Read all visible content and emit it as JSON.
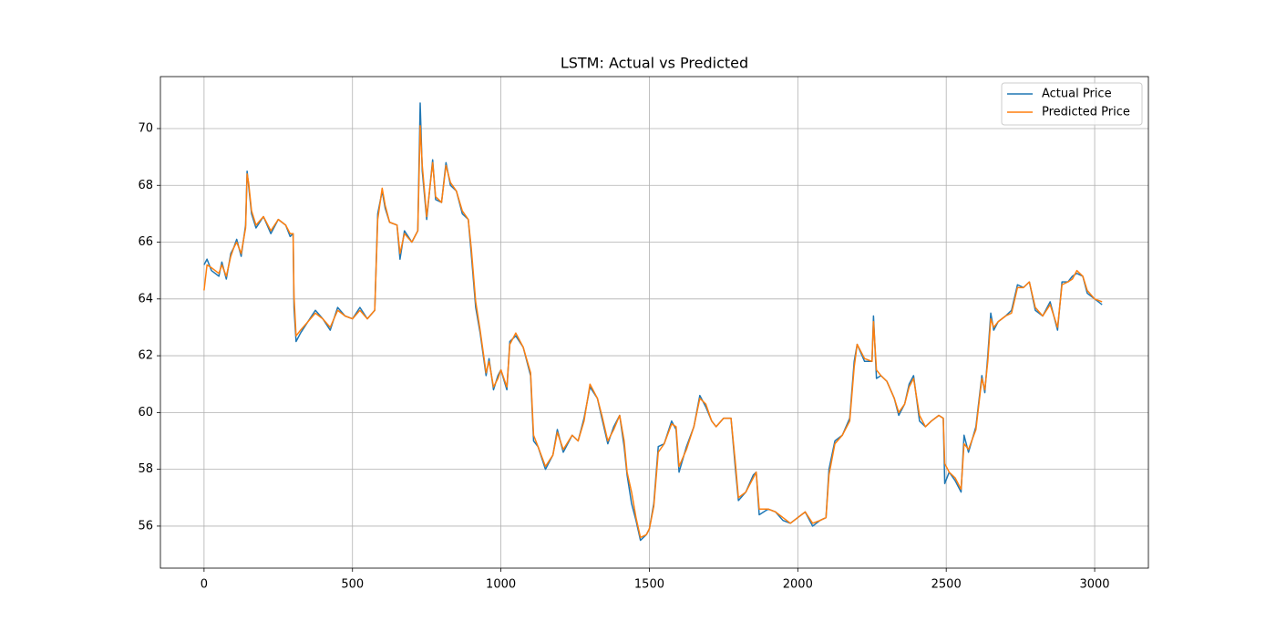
{
  "chart_data": {
    "type": "line",
    "title": "LSTM: Actual vs Predicted",
    "x": [
      0,
      10,
      25,
      50,
      60,
      75,
      90,
      100,
      110,
      125,
      140,
      145,
      150,
      160,
      175,
      200,
      225,
      250,
      275,
      290,
      300,
      303,
      310,
      325,
      350,
      375,
      400,
      425,
      450,
      475,
      500,
      525,
      550,
      575,
      585,
      600,
      610,
      625,
      650,
      660,
      675,
      700,
      720,
      728,
      735,
      750,
      770,
      780,
      800,
      815,
      830,
      850,
      870,
      890,
      900,
      915,
      930,
      950,
      960,
      975,
      990,
      1000,
      1020,
      1030,
      1050,
      1075,
      1100,
      1110,
      1125,
      1150,
      1175,
      1190,
      1210,
      1240,
      1260,
      1280,
      1300,
      1325,
      1340,
      1360,
      1380,
      1400,
      1415,
      1425,
      1440,
      1455,
      1470,
      1490,
      1500,
      1515,
      1530,
      1550,
      1575,
      1590,
      1600,
      1625,
      1650,
      1670,
      1690,
      1710,
      1725,
      1750,
      1775,
      1790,
      1800,
      1825,
      1850,
      1860,
      1870,
      1900,
      1925,
      1950,
      1975,
      2000,
      2025,
      2050,
      2075,
      2095,
      2105,
      2125,
      2150,
      2175,
      2190,
      2200,
      2225,
      2250,
      2255,
      2265,
      2280,
      2300,
      2325,
      2340,
      2360,
      2375,
      2390,
      2410,
      2430,
      2450,
      2475,
      2490,
      2495,
      2510,
      2530,
      2550,
      2560,
      2575,
      2600,
      2620,
      2630,
      2640,
      2650,
      2660,
      2675,
      2700,
      2720,
      2740,
      2760,
      2780,
      2800,
      2825,
      2850,
      2875,
      2890,
      2910,
      2925,
      2940,
      2960,
      2975,
      3000,
      3025
    ],
    "series": [
      {
        "name": "Actual Price",
        "color": "#1f77b4",
        "values": [
          65.2,
          65.4,
          65.0,
          64.8,
          65.3,
          64.7,
          65.6,
          65.8,
          66.1,
          65.5,
          66.6,
          68.5,
          68.0,
          67.0,
          66.5,
          66.9,
          66.3,
          66.8,
          66.6,
          66.2,
          66.3,
          63.7,
          62.5,
          62.8,
          63.2,
          63.6,
          63.3,
          62.9,
          63.7,
          63.4,
          63.3,
          63.7,
          63.3,
          63.6,
          67.0,
          67.8,
          67.2,
          66.7,
          66.6,
          65.4,
          66.4,
          66.0,
          66.4,
          70.9,
          68.5,
          66.8,
          68.9,
          67.5,
          67.4,
          68.8,
          68.0,
          67.8,
          67.0,
          66.8,
          65.6,
          63.7,
          62.8,
          61.3,
          61.9,
          60.8,
          61.3,
          61.5,
          60.8,
          62.5,
          62.7,
          62.3,
          61.3,
          59.0,
          58.8,
          58.0,
          58.5,
          59.4,
          58.6,
          59.2,
          59.0,
          59.8,
          60.9,
          60.5,
          59.8,
          58.9,
          59.5,
          59.9,
          58.8,
          57.8,
          56.8,
          56.2,
          55.5,
          55.7,
          55.9,
          56.8,
          58.8,
          58.9,
          59.7,
          59.4,
          57.9,
          58.8,
          59.5,
          60.6,
          60.2,
          59.7,
          59.5,
          59.8,
          59.8,
          58.0,
          56.9,
          57.2,
          57.8,
          57.9,
          56.4,
          56.6,
          56.5,
          56.2,
          56.1,
          56.3,
          56.5,
          56.0,
          56.2,
          56.3,
          58.0,
          59.0,
          59.2,
          59.8,
          61.8,
          62.4,
          61.8,
          61.8,
          63.4,
          61.2,
          61.3,
          61.1,
          60.5,
          59.9,
          60.3,
          61.0,
          61.3,
          59.7,
          59.5,
          59.7,
          59.9,
          59.8,
          57.5,
          57.9,
          57.6,
          57.2,
          59.2,
          58.6,
          59.5,
          61.3,
          60.7,
          62.0,
          63.5,
          62.9,
          63.2,
          63.4,
          63.6,
          64.5,
          64.4,
          64.6,
          63.6,
          63.4,
          63.9,
          62.9,
          64.6,
          64.6,
          64.8,
          64.9,
          64.8,
          64.2,
          64.0,
          63.8
        ]
      },
      {
        "name": "Predicted Price",
        "color": "#ff7f0e",
        "values": [
          64.3,
          65.2,
          65.1,
          64.9,
          65.2,
          64.8,
          65.5,
          65.8,
          66.0,
          65.6,
          66.5,
          68.4,
          68.1,
          67.1,
          66.6,
          66.9,
          66.4,
          66.8,
          66.6,
          66.3,
          66.3,
          64.1,
          62.7,
          62.9,
          63.2,
          63.5,
          63.3,
          63.0,
          63.6,
          63.4,
          63.3,
          63.6,
          63.3,
          63.6,
          66.8,
          67.9,
          67.3,
          66.7,
          66.6,
          65.6,
          66.3,
          66.0,
          66.4,
          70.1,
          68.7,
          66.9,
          68.8,
          67.6,
          67.4,
          68.7,
          68.1,
          67.8,
          67.1,
          66.8,
          65.8,
          63.9,
          62.9,
          61.4,
          61.8,
          60.9,
          61.2,
          61.5,
          60.9,
          62.4,
          62.8,
          62.3,
          61.4,
          59.2,
          58.8,
          58.1,
          58.5,
          59.3,
          58.7,
          59.2,
          59.0,
          59.7,
          61.0,
          60.5,
          59.9,
          59.0,
          59.4,
          59.9,
          59.0,
          57.9,
          57.2,
          56.3,
          55.6,
          55.7,
          55.9,
          56.7,
          58.6,
          58.9,
          59.6,
          59.5,
          58.1,
          58.7,
          59.5,
          60.5,
          60.3,
          59.7,
          59.5,
          59.8,
          59.8,
          58.2,
          57.0,
          57.2,
          57.7,
          57.9,
          56.6,
          56.6,
          56.5,
          56.3,
          56.1,
          56.3,
          56.5,
          56.1,
          56.2,
          56.3,
          57.8,
          58.9,
          59.2,
          59.7,
          61.6,
          62.4,
          61.9,
          61.8,
          63.2,
          61.5,
          61.3,
          61.1,
          60.5,
          60.0,
          60.3,
          60.9,
          61.2,
          59.9,
          59.5,
          59.7,
          59.9,
          59.8,
          58.2,
          57.9,
          57.7,
          57.3,
          58.9,
          58.7,
          59.4,
          61.2,
          60.8,
          61.8,
          63.3,
          63.0,
          63.2,
          63.4,
          63.5,
          64.4,
          64.4,
          64.6,
          63.7,
          63.4,
          63.8,
          63.0,
          64.5,
          64.6,
          64.7,
          65.0,
          64.8,
          64.3,
          64.0,
          63.9
        ]
      }
    ],
    "xlim": [
      -147,
      3181
    ],
    "ylim": [
      54.52,
      71.83
    ],
    "xticks": [
      0,
      500,
      1000,
      1500,
      2000,
      2500,
      3000
    ],
    "yticks": [
      56,
      58,
      60,
      62,
      64,
      66,
      68,
      70
    ],
    "grid": true,
    "legend": "upper right"
  }
}
